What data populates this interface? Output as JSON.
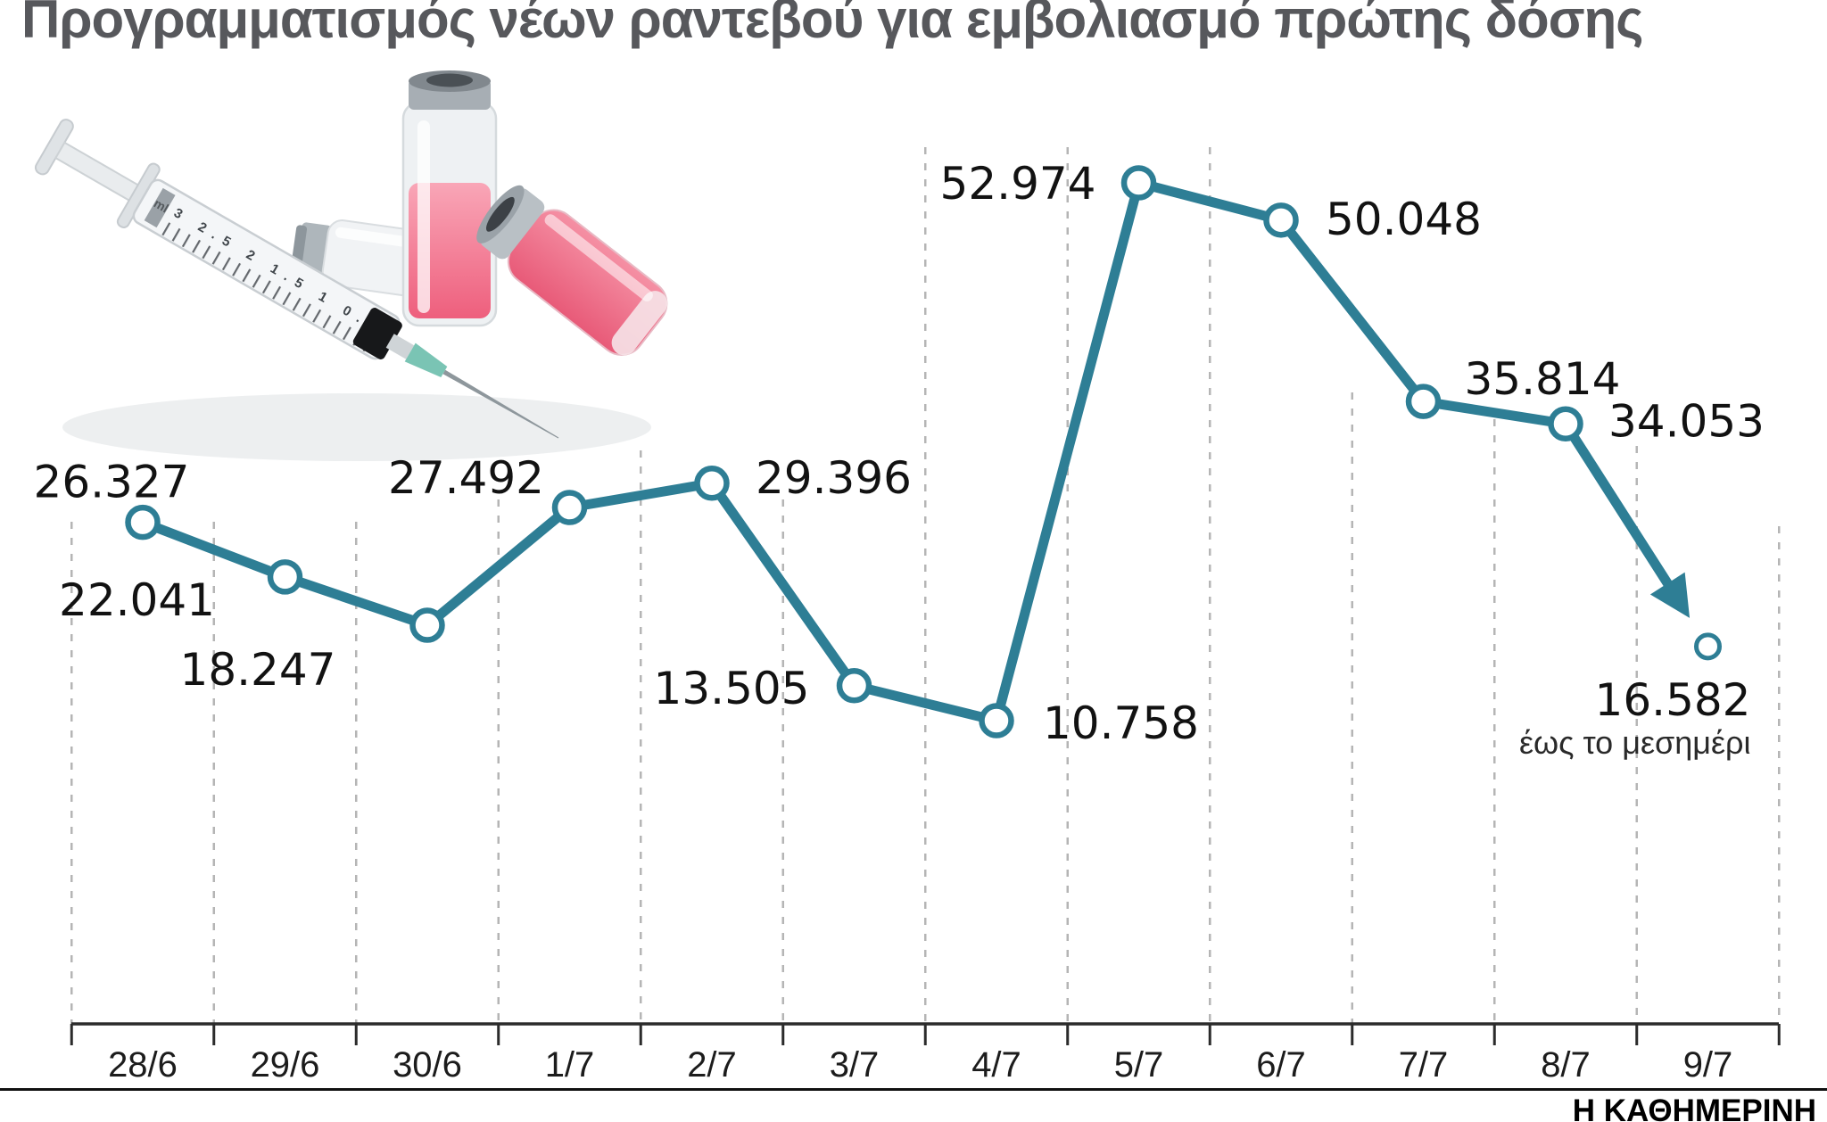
{
  "title": "Προγραμματισμός νέων ραντεβού για εμβολιασμό πρώτης δόσης",
  "source": "Η ΚΑΘΗΜΕΡΙΝΗ",
  "annotation": "έως το μεσημέρι",
  "colors": {
    "line": "#2e7e95",
    "title": "#57585c",
    "text": "#121212",
    "grid": "#b5b5b5",
    "axis": "#2b2b2b",
    "liquid_pink": "#ee6484"
  },
  "chart_data": {
    "type": "line",
    "categories": [
      "28/6",
      "29/6",
      "30/6",
      "1/7",
      "2/7",
      "3/7",
      "4/7",
      "5/7",
      "6/7",
      "7/7",
      "8/7",
      "9/7"
    ],
    "values": [
      26327,
      22041,
      18247,
      27492,
      29396,
      13505,
      10758,
      52974,
      50048,
      35814,
      34053,
      16582
    ],
    "value_labels": [
      "26.327",
      "22.041",
      "18.247",
      "27.492",
      "29.396",
      "13.505",
      "10.758",
      "52.974",
      "50.048",
      "35.814",
      "34.053",
      "16.582"
    ],
    "title": "Προγραμματισμός νέων ραντεβού για εμβολιασμό πρώτης δόσης",
    "xlabel": "",
    "ylabel": "",
    "ylim": [
      0,
      60000
    ],
    "grid": "vertical-dashed",
    "legend": "none",
    "marker": "open-circle",
    "arrow_to_last_point": true,
    "last_point_note": "έως το μεσημέρι"
  },
  "illustration": {
    "type": "photo",
    "content": "syringe and vaccine vials with pink liquid",
    "scale_text": "3   2.5   2   1.5   1   0.5",
    "unit_text": "ml"
  }
}
